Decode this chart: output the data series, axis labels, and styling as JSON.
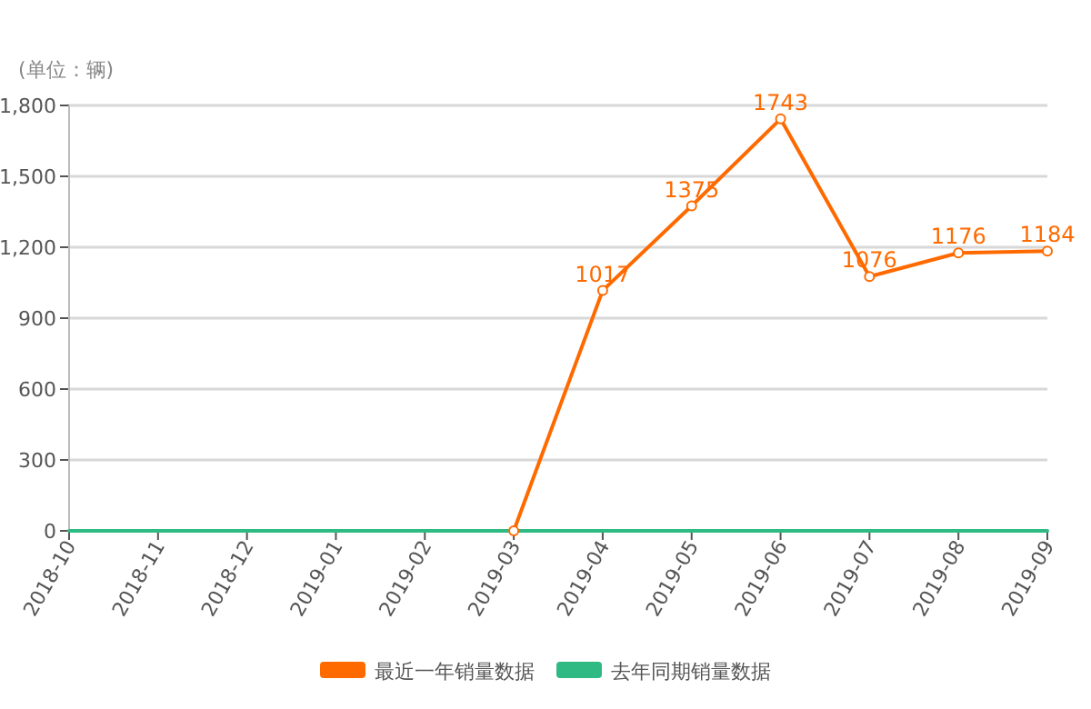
{
  "chart_data": {
    "type": "line",
    "ylabel": "(单位：辆)",
    "categories": [
      "2018-10",
      "2018-11",
      "2018-12",
      "2019-01",
      "2019-02",
      "2019-03",
      "2019-04",
      "2019-05",
      "2019-06",
      "2019-07",
      "2019-08",
      "2019-09"
    ],
    "series": [
      {
        "name": "最近一年销量数据",
        "color": "#ff6a00",
        "marker": "circle",
        "values": [
          null,
          null,
          null,
          null,
          null,
          0,
          1017,
          1375,
          1743,
          1076,
          1176,
          1184
        ],
        "value_labels": [
          null,
          null,
          null,
          null,
          null,
          null,
          "1017",
          "1375",
          "1743",
          "1076",
          "1176",
          "1184"
        ]
      },
      {
        "name": "去年同期销量数据",
        "color": "#2fba83",
        "marker": "none",
        "values": [
          0,
          0,
          0,
          0,
          0,
          0,
          0,
          0,
          0,
          0,
          0,
          0
        ]
      }
    ],
    "ylim": [
      0,
      1800
    ],
    "yticks": [
      0,
      {
        "value": 300,
        "label": "300"
      },
      {
        "value": 600,
        "label": "600"
      },
      {
        "value": 900,
        "label": "900"
      },
      {
        "value": 1200,
        "label": "1,200"
      },
      {
        "value": 1500,
        "label": "1,500"
      },
      {
        "value": 1800,
        "label": "1,800"
      }
    ],
    "grid": "y",
    "legend": "bottom",
    "line_style": "solid"
  }
}
